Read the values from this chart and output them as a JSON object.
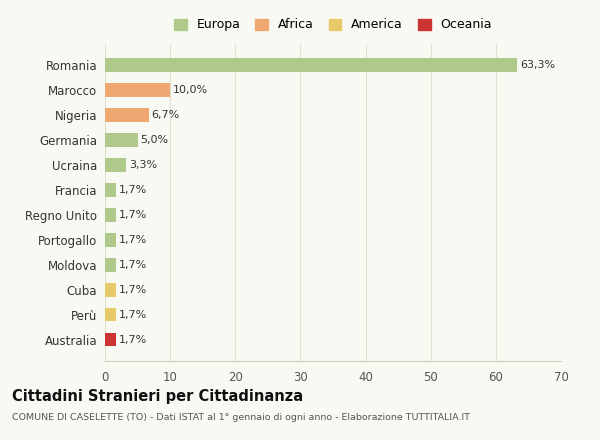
{
  "countries": [
    "Romania",
    "Marocco",
    "Nigeria",
    "Germania",
    "Ucraina",
    "Francia",
    "Regno Unito",
    "Portogallo",
    "Moldova",
    "Cuba",
    "Perù",
    "Australia"
  ],
  "values": [
    63.3,
    10.0,
    6.7,
    5.0,
    3.3,
    1.7,
    1.7,
    1.7,
    1.7,
    1.7,
    1.7,
    1.7
  ],
  "labels": [
    "63,3%",
    "10,0%",
    "6,7%",
    "5,0%",
    "3,3%",
    "1,7%",
    "1,7%",
    "1,7%",
    "1,7%",
    "1,7%",
    "1,7%",
    "1,7%"
  ],
  "colors": [
    "#aec98a",
    "#f0a872",
    "#f0a872",
    "#aec98a",
    "#aec98a",
    "#aec98a",
    "#aec98a",
    "#aec98a",
    "#aec98a",
    "#e8c96a",
    "#e8c96a",
    "#cc3333"
  ],
  "legend_labels": [
    "Europa",
    "Africa",
    "America",
    "Oceania"
  ],
  "legend_colors": [
    "#aec98a",
    "#f0a872",
    "#e8c96a",
    "#cc3333"
  ],
  "title": "Cittadini Stranieri per Cittadinanza",
  "subtitle": "COMUNE DI CASELETTE (TO) - Dati ISTAT al 1° gennaio di ogni anno - Elaborazione TUTTITALIA.IT",
  "xlim": [
    0,
    70
  ],
  "xticks": [
    0,
    10,
    20,
    30,
    40,
    50,
    60,
    70
  ],
  "bg_color": "#f9f9f4",
  "grid_color": "#e0e0d0"
}
